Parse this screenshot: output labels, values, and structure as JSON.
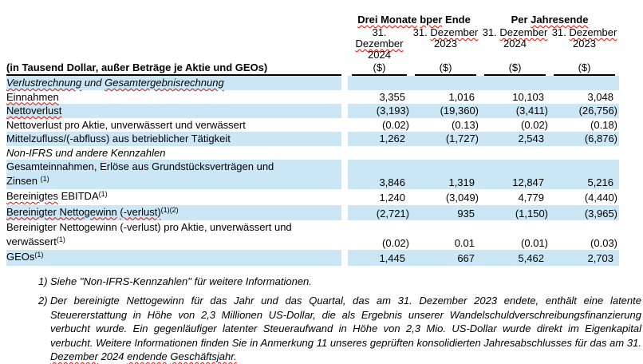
{
  "colors": {
    "shaded_row": "#cbe7f5",
    "rule": "#000000",
    "spellcheck_squiggle": "#e01000",
    "text": "#000000"
  },
  "table": {
    "group_headers": [
      {
        "segments": [
          {
            "t": "Drei Monate",
            "sq": true
          },
          {
            "t": " "
          },
          {
            "t": "bper",
            "sq": true
          },
          {
            "t": " Ende"
          }
        ]
      },
      {
        "segments": [
          {
            "t": "Per "
          },
          {
            "t": "Jahresende",
            "sq": true
          }
        ]
      }
    ],
    "column_headers": [
      {
        "line1": [
          {
            "t": "31. "
          },
          {
            "t": "Dezember",
            "sq": true
          }
        ],
        "line2": "2024"
      },
      {
        "line1": [
          {
            "t": "31. "
          },
          {
            "t": "Dezember",
            "sq": true
          }
        ],
        "line2": "2023"
      },
      {
        "line1": [
          {
            "t": "31. "
          },
          {
            "t": "Dezember",
            "sq": true
          }
        ],
        "line2": "2024"
      },
      {
        "line1": [
          {
            "t": "31. "
          },
          {
            "t": "Dezember",
            "sq": true
          }
        ],
        "line2": "2023"
      }
    ],
    "unit_label": "($)",
    "label_header": "(in Tausend Dollar, außer Beträge je Aktie und GEOs)",
    "rows": [
      {
        "name": "section-verlustrechnung",
        "italic": true,
        "shaded": true,
        "label": [
          {
            "t": "Verlustrechnung",
            "sq": true
          },
          {
            "t": " und "
          },
          {
            "t": "Gesamtergebnisrechnung",
            "sq": true
          }
        ],
        "values": [
          "",
          "",
          "",
          ""
        ]
      },
      {
        "name": "einnahmen",
        "shaded": false,
        "label": [
          {
            "t": "Einnahmen",
            "sq": true
          }
        ],
        "values": [
          "3,355",
          "1,016",
          "10,103",
          "3,048"
        ]
      },
      {
        "name": "nettoverlust",
        "shaded": true,
        "label": [
          {
            "t": "Nettoverlust",
            "sq": true
          }
        ],
        "values": [
          "(3,193)",
          "(19,360)",
          "(3,411)",
          "(26,756)"
        ]
      },
      {
        "name": "nettoverlust-pro-aktie",
        "shaded": false,
        "label": [
          {
            "t": "Nettoverlust pro Aktie, unverwässert und verwässert"
          }
        ],
        "values": [
          "(0.02)",
          "(0.13)",
          "(0.02)",
          "(0.18)"
        ]
      },
      {
        "name": "mittelzufluss",
        "shaded": true,
        "label": [
          {
            "t": "Mittelzufluss/(-abfluss) aus betrieblicher Tätigkeit"
          }
        ],
        "values": [
          "1,262",
          "(1,727)",
          "2,543",
          "(6,876)"
        ]
      },
      {
        "name": "section-non-ifrs",
        "italic": true,
        "shaded": false,
        "label": [
          {
            "t": "Non-IFRS und andere Kennzahlen"
          }
        ],
        "values": [
          "",
          "",
          "",
          ""
        ]
      },
      {
        "name": "gesamteinnahmen",
        "shaded": true,
        "label": [
          {
            "t": "Gesamteinnahmen, Erlöse aus Grundstücksverträgen und"
          },
          {
            "br": true
          },
          {
            "t": "Zinsen"
          },
          {
            "t": " "
          },
          {
            "t": "(1)",
            "sup": true
          }
        ],
        "values": [
          "3,846",
          "1,319",
          "12,847",
          "5,216"
        ]
      },
      {
        "name": "bereinigtes-ebitda",
        "shaded": false,
        "label": [
          {
            "t": "Bereinigtes",
            "sq": true
          },
          {
            "t": " EBITDA"
          },
          {
            "t": "(1)",
            "sup": true
          }
        ],
        "values": [
          "1,240",
          "(3,049)",
          "4,779",
          "(4,440)"
        ]
      },
      {
        "name": "bereinigter-nettogewinn",
        "shaded": true,
        "label": [
          {
            "t": "Bereinigter Nettogewinn",
            "sq": true
          },
          {
            "t": " "
          },
          {
            "t": "(-verlust)",
            "sq": true
          },
          {
            "t": "(1)(2)",
            "sup": true
          }
        ],
        "values": [
          "(2,721)",
          "935",
          "(1,150)",
          "(3,965)"
        ]
      },
      {
        "name": "bereinigter-nettogewinn-pro-aktie",
        "shaded": false,
        "label": [
          {
            "t": "Bereinigter Nettogewinn (-verlust) pro Aktie, unverwässert und"
          },
          {
            "br": true
          },
          {
            "t": "verwässert"
          },
          {
            "t": "(1)",
            "sup": true
          }
        ],
        "values": [
          "(0.02)",
          "0.01",
          "(0.01)",
          "(0.03)"
        ]
      },
      {
        "name": "geos",
        "shaded": true,
        "label": [
          {
            "t": "GEOs"
          },
          {
            "t": "(1)",
            "sup": true
          }
        ],
        "values": [
          "1,445",
          "667",
          "5,462",
          "2,703"
        ]
      }
    ]
  },
  "footnotes": [
    {
      "num": "1)",
      "justify": false,
      "segments": [
        {
          "t": "Siehe \"Non-IFRS-Kennzahlen\" für weitere Informationen."
        }
      ]
    },
    {
      "num": "2)",
      "justify": true,
      "segments": [
        {
          "t": "Der bereinigte Nettogewinn für das Jahr und das Quartal, das am 31. Dezember 2023 endete, enthält eine latente Steuererstattung in Höhe von 2,3 Millionen US-Dollar, die als Ergebnis unserer Wandelschuldverschreibungsfinanzierung verbucht wurde. Ein gegenläufiger latenter Steueraufwand in Höhe von 2,3 Mio. US-Dollar wurde direkt im Eigenkapital verbucht. Weitere Informationen finden Sie in Anmerkung 11 unseres geprüften konsolidierten Jahresabschlusses für das am 31. "
        },
        {
          "t": "Dezember",
          "sq": true
        },
        {
          "t": " 2024 "
        },
        {
          "t": "endende",
          "sq": true
        },
        {
          "t": " "
        },
        {
          "t": "Geschäftsjahr.",
          "sq": true
        }
      ]
    }
  ]
}
